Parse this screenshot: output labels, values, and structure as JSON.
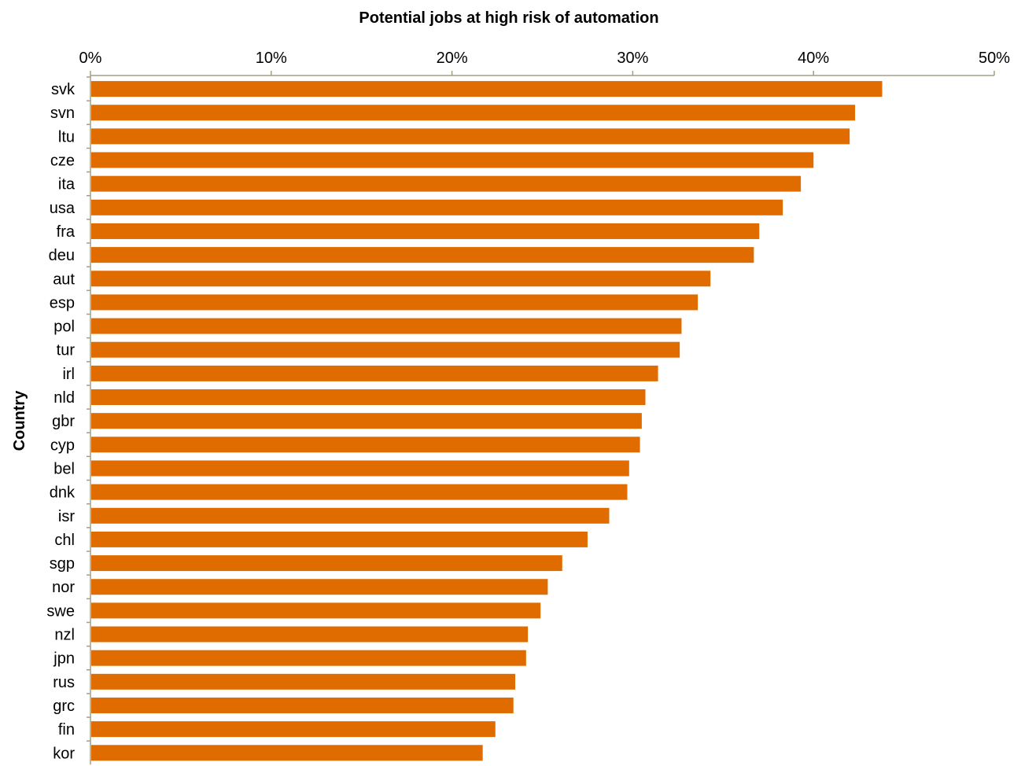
{
  "colors": {
    "bar": "#e06c00",
    "axis": "#a29f87"
  },
  "chart_data": {
    "type": "bar",
    "orientation": "horizontal",
    "title": "Potential jobs at high risk of automation",
    "xlabel": "",
    "ylabel": "Country",
    "xlim": [
      0,
      0.5
    ],
    "x_ticks": [
      "0%",
      "10%",
      "20%",
      "30%",
      "40%",
      "50%"
    ],
    "x_axis_position": "top",
    "grid": false,
    "legend": "none",
    "categories": [
      "svk",
      "svn",
      "ltu",
      "cze",
      "ita",
      "usa",
      "fra",
      "deu",
      "aut",
      "esp",
      "pol",
      "tur",
      "irl",
      "nld",
      "gbr",
      "cyp",
      "bel",
      "dnk",
      "isr",
      "chl",
      "sgp",
      "nor",
      "swe",
      "nzl",
      "jpn",
      "rus",
      "grc",
      "fin",
      "kor"
    ],
    "values": [
      0.438,
      0.423,
      0.42,
      0.4,
      0.393,
      0.383,
      0.37,
      0.367,
      0.343,
      0.336,
      0.327,
      0.326,
      0.314,
      0.307,
      0.305,
      0.304,
      0.298,
      0.297,
      0.287,
      0.275,
      0.261,
      0.253,
      0.249,
      0.242,
      0.241,
      0.235,
      0.234,
      0.224,
      0.217
    ]
  }
}
